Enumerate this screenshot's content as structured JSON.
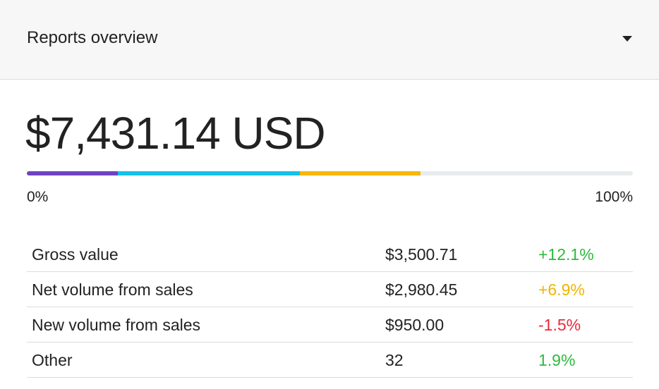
{
  "header": {
    "title": "Reports overview"
  },
  "total": "$7,431.14 USD",
  "progress": {
    "ticks": [
      {
        "value": 0,
        "label": "0%"
      },
      {
        "value": 100,
        "label": "100%"
      }
    ],
    "segments": [
      {
        "value": 15,
        "color": "#6f42c1"
      },
      {
        "value": 30,
        "color": "#17c1e8"
      },
      {
        "value": 20,
        "color": "#f5b80a"
      }
    ],
    "track_color": "#e9ecef"
  },
  "table": {
    "rows": [
      {
        "label": "Gross value",
        "amount": "$3,500.71",
        "change": "+12.1%",
        "change_color": "#2dba3c"
      },
      {
        "label": "Net volume from sales",
        "amount": "$2,980.45",
        "change": "+6.9%",
        "change_color": "#f0b400"
      },
      {
        "label": "New volume from sales",
        "amount": "$950.00",
        "change": "-1.5%",
        "change_color": "#e8293c"
      },
      {
        "label": "Other",
        "amount": "32",
        "change": "1.9%",
        "change_color": "#2dba3c"
      }
    ]
  }
}
